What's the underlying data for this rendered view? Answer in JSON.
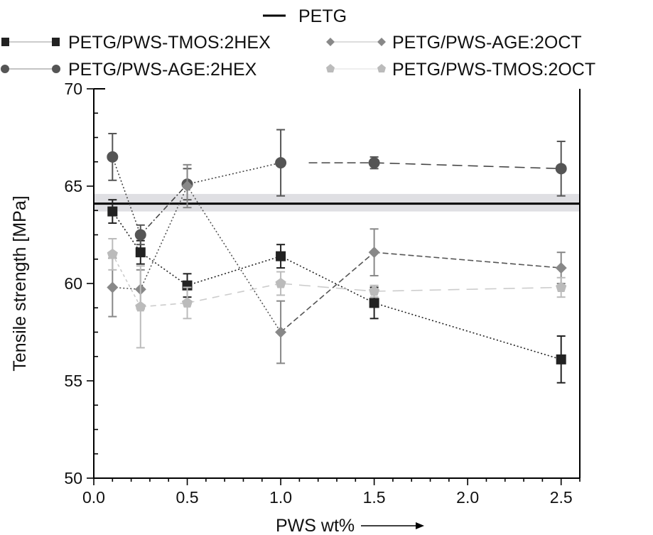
{
  "chart_data": {
    "type": "line",
    "title": "",
    "xlabel": "PWS wt%",
    "ylabel": "Tensile strength [MPa]",
    "xlim": [
      0.0,
      2.6
    ],
    "ylim": [
      50,
      70
    ],
    "xticks": [
      0.0,
      0.5,
      1.0,
      1.5,
      2.0,
      2.5
    ],
    "xtick_labels": [
      "0.0",
      "0.5",
      "1.0",
      "1.5",
      "2.0",
      "2.5"
    ],
    "yticks": [
      50,
      55,
      60,
      65,
      70
    ],
    "ytick_labels": [
      "50",
      "55",
      "60",
      "65",
      "70"
    ],
    "grid": false,
    "legend_placement": "top-outside",
    "reference": {
      "name": "PETG",
      "value": 64.1,
      "band": [
        63.7,
        64.6
      ],
      "color": "#000000",
      "band_color": "#d9d9de"
    },
    "series": [
      {
        "name": "PETG/PWS-TMOS:2HEX",
        "marker": "square",
        "color": "#222222",
        "x": [
          0.1,
          0.25,
          0.5,
          1.0,
          1.5,
          2.5
        ],
        "values": [
          63.7,
          61.6,
          59.9,
          61.4,
          59.0,
          56.1
        ],
        "errors": [
          0.6,
          0.6,
          0.6,
          0.6,
          0.8,
          1.2
        ]
      },
      {
        "name": "PETG/PWS-AGE:2HEX",
        "marker": "circle",
        "color": "#555555",
        "x": [
          0.1,
          0.25,
          0.5,
          1.0,
          1.5,
          2.5
        ],
        "values": [
          66.5,
          62.5,
          65.1,
          66.2,
          66.2,
          65.9
        ],
        "errors": [
          1.2,
          0.5,
          0.8,
          1.7,
          0.3,
          1.4
        ]
      },
      {
        "name": "PETG/PWS-AGE:2OCT",
        "marker": "diamond",
        "color": "#888888",
        "x": [
          0.1,
          0.25,
          0.5,
          1.0,
          1.5,
          2.5
        ],
        "values": [
          59.8,
          59.7,
          65.0,
          57.5,
          61.6,
          60.8
        ],
        "errors": [
          1.5,
          1.0,
          1.1,
          1.6,
          1.2,
          0.8
        ]
      },
      {
        "name": "PETG/PWS-TMOS:2OCT",
        "marker": "pentagon",
        "color": "#bbbbbb",
        "x": [
          0.1,
          0.25,
          0.5,
          1.0,
          1.5,
          2.5
        ],
        "values": [
          61.5,
          58.8,
          59.0,
          60.0,
          59.6,
          59.8
        ],
        "errors": [
          0.8,
          2.1,
          0.8,
          0.6,
          0.3,
          0.5
        ]
      }
    ],
    "legend": [
      "PETG",
      "PETG/PWS-TMOS:2HEX",
      "PETG/PWS-AGE:2OCT",
      "PETG/PWS-AGE:2HEX",
      "PETG/PWS-TMOS:2OCT"
    ],
    "x_arrow": "right-arrow"
  }
}
